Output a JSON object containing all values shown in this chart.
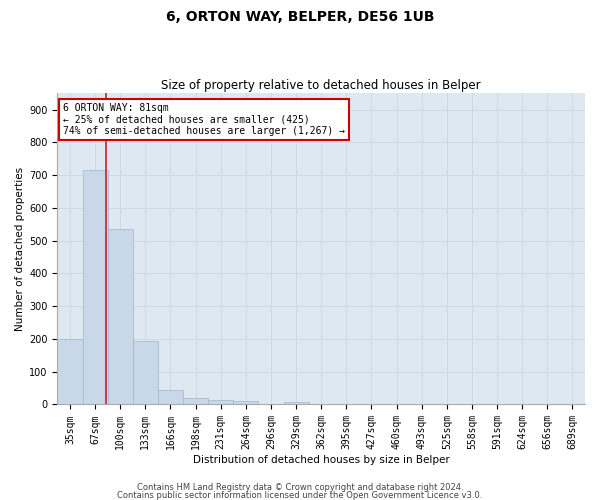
{
  "title1": "6, ORTON WAY, BELPER, DE56 1UB",
  "title2": "Size of property relative to detached houses in Belper",
  "xlabel": "Distribution of detached houses by size in Belper",
  "ylabel": "Number of detached properties",
  "categories": [
    "35sqm",
    "67sqm",
    "100sqm",
    "133sqm",
    "166sqm",
    "198sqm",
    "231sqm",
    "264sqm",
    "296sqm",
    "329sqm",
    "362sqm",
    "395sqm",
    "427sqm",
    "460sqm",
    "493sqm",
    "525sqm",
    "558sqm",
    "591sqm",
    "624sqm",
    "656sqm",
    "689sqm"
  ],
  "values": [
    200,
    715,
    535,
    193,
    45,
    20,
    14,
    12,
    0,
    8,
    0,
    0,
    0,
    0,
    0,
    0,
    0,
    0,
    0,
    0,
    0
  ],
  "bar_color": "#c8d8e8",
  "bar_edgecolor": "#a0b8cc",
  "grid_color": "#d0d8e8",
  "bg_color": "#dde8f0",
  "property_line_x": 1.42,
  "annotation_line1": "6 ORTON WAY: 81sqm",
  "annotation_line2": "← 25% of detached houses are smaller (425)",
  "annotation_line3": "74% of semi-detached houses are larger (1,267) →",
  "annotation_box_color": "#ffffff",
  "annotation_box_edgecolor": "#cc0000",
  "ylim": [
    0,
    950
  ],
  "yticks": [
    0,
    100,
    200,
    300,
    400,
    500,
    600,
    700,
    800,
    900
  ],
  "footer1": "Contains HM Land Registry data © Crown copyright and database right 2024.",
  "footer2": "Contains public sector information licensed under the Open Government Licence v3.0.",
  "red_line_color": "#cc2222",
  "title1_fontsize": 10,
  "title2_fontsize": 8.5,
  "ylabel_fontsize": 7.5,
  "xlabel_fontsize": 7.5,
  "tick_fontsize": 7,
  "annotation_fontsize": 7,
  "footer_fontsize": 6
}
